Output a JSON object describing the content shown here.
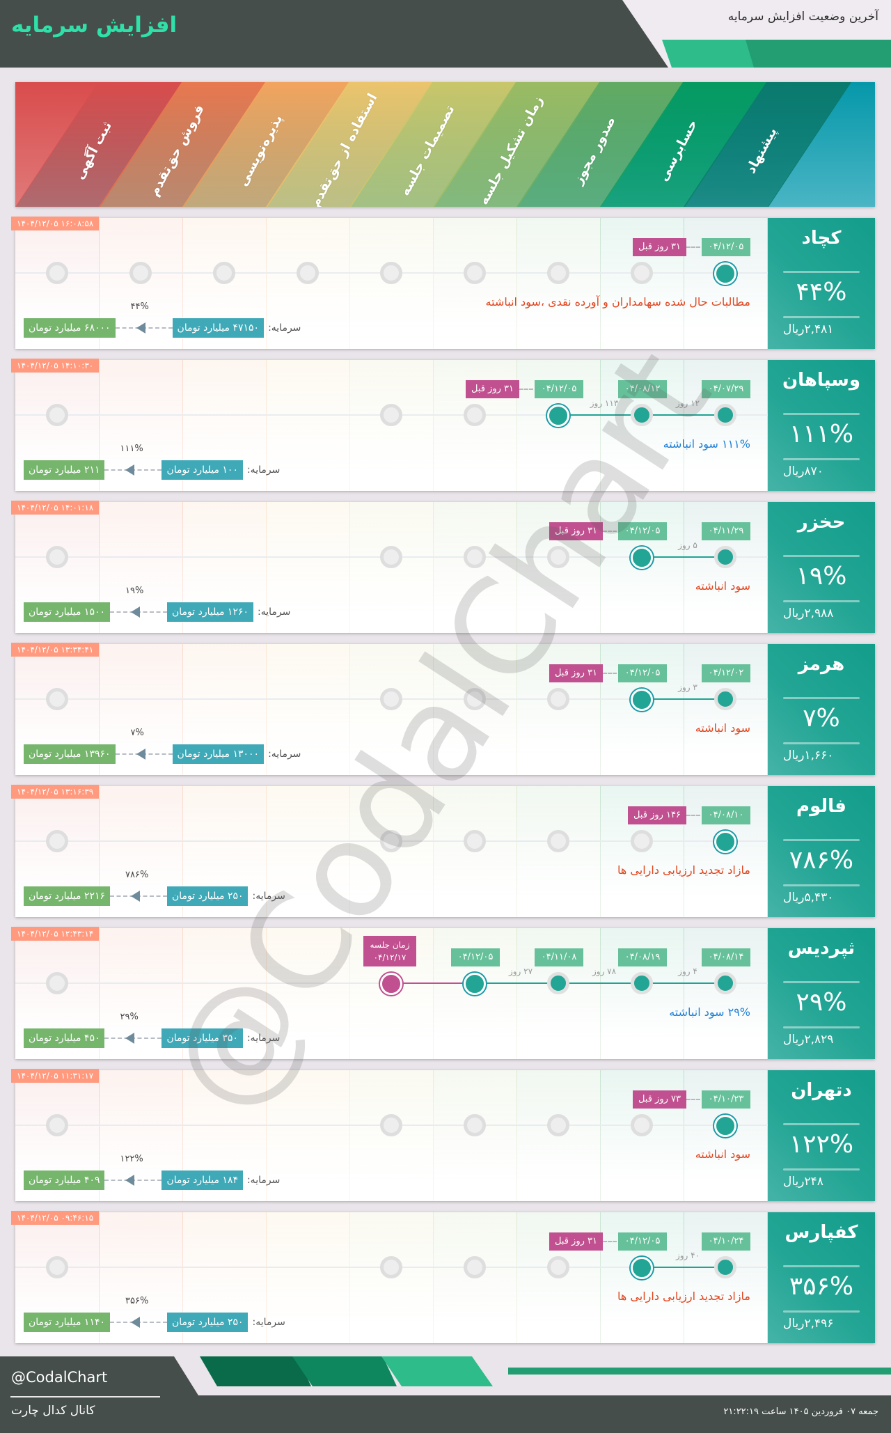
{
  "header": {
    "title": "افزایش سرمایه",
    "subtitle": "آخرین وضعیت افزایش سرمایه"
  },
  "stages": [
    {
      "label": "ثبت آگهی",
      "color": "#d94c4c"
    },
    {
      "label": "فروش حق‌تقدم",
      "color": "#e8784f"
    },
    {
      "label": "پذیره‌نویسی",
      "color": "#f2a45e"
    },
    {
      "label": "استفاده از حق‌تقدم",
      "color": "#ecc46c"
    },
    {
      "label": "تصمیمات جلسه",
      "color": "#c9c66a"
    },
    {
      "label": "زمان تشکیل جلسه",
      "color": "#9bbb62"
    },
    {
      "label": "صدور مجوز",
      "color": "#62aa63"
    },
    {
      "label": "حسابرسی",
      "color": "#069a62"
    },
    {
      "label": "پیشنهاد",
      "color": "#0b7a6e"
    }
  ],
  "capital_label": "سرمایه:",
  "colors": {
    "accent": "#22a594",
    "date_badge": "#66c09a",
    "ago_badge": "#c0508f",
    "timestamp": "#ff9a7f",
    "capital_from": "#3fa9b8",
    "capital_to": "#76b56c",
    "desc_red": "#e0461f",
    "desc_blue": "#1f7fd6"
  },
  "cards": [
    {
      "name": "کچاد",
      "percent": "۴۴%",
      "price": "۲,۴۸۱ریال",
      "timestamp": "۱۴۰۴/۱۲/۰۵ ۱۶:۰۸:۵۸",
      "steps": [
        "۰۴/۱۲/۰۵"
      ],
      "gaps": [],
      "ago": "۳۱ روز قبل",
      "description": "مطالبات حال شده سهامداران و آورده نقدی ،سود انباشته",
      "description_color": "red",
      "pending_stages": [
        1,
        2,
        3,
        4,
        5,
        6,
        7,
        8
      ],
      "capital_from": "۴۷۱۵۰ میلیارد تومان",
      "capital_to": "۶۸۰۰۰ میلیارد تومان",
      "growth": "۴۴%"
    },
    {
      "name": "وسپاهان",
      "percent": "۱۱۱%",
      "price": "۸۷۰ریال",
      "timestamp": "۱۴۰۴/۱۲/۰۵ ۱۴:۱۰:۳۰",
      "steps": [
        "۰۴/۰۷/۲۹",
        "۰۴/۰۸/۱۲",
        "۰۴/۱۲/۰۵"
      ],
      "gaps": [
        "۱۲ روز",
        "۱۱۳ روز"
      ],
      "ago": "۳۱ روز قبل",
      "description": "۱۱۱% سود انباشته",
      "description_color": "blue",
      "pending_stages": [
        3,
        4,
        8
      ],
      "capital_from": "۱۰۰ میلیارد تومان",
      "capital_to": "۲۱۱ میلیارد تومان",
      "growth": "۱۱۱%"
    },
    {
      "name": "حخزر",
      "percent": "۱۹%",
      "price": "۲,۹۸۸ریال",
      "timestamp": "۱۴۰۴/۱۲/۰۵ ۱۴:۰۱:۱۸",
      "steps": [
        "۰۴/۱۱/۲۹",
        "۰۴/۱۲/۰۵"
      ],
      "gaps": [
        "۵ روز"
      ],
      "ago": "۳۱ روز قبل",
      "description": "سود انباشته",
      "description_color": "red",
      "pending_stages": [
        2,
        3,
        4,
        8
      ],
      "capital_from": "۱۲۶۰ میلیارد تومان",
      "capital_to": "۱۵۰۰ میلیارد تومان",
      "growth": "۱۹%"
    },
    {
      "name": "هرمز",
      "percent": "۷%",
      "price": "۱,۶۶۰ریال",
      "timestamp": "۱۴۰۴/۱۲/۰۵ ۱۳:۳۴:۴۱",
      "steps": [
        "۰۴/۱۲/۰۲",
        "۰۴/۱۲/۰۵"
      ],
      "gaps": [
        "۳ روز"
      ],
      "ago": "۳۱ روز قبل",
      "description": "سود انباشته",
      "description_color": "red",
      "pending_stages": [
        2,
        3,
        4,
        8
      ],
      "capital_from": "۱۳۰۰۰ میلیارد تومان",
      "capital_to": "۱۳۹۶۰ میلیارد تومان",
      "growth": "۷%"
    },
    {
      "name": "فالوم",
      "percent": "۷۸۶%",
      "price": "۵,۴۳۰ریال",
      "timestamp": "۱۴۰۴/۱۲/۰۵ ۱۳:۱۶:۳۹",
      "steps": [
        "۰۴/۰۸/۱۰"
      ],
      "gaps": [],
      "ago": "۱۴۶ روز قبل",
      "description": "مازاد تجدید ارزیابی دارایی ها",
      "description_color": "red",
      "pending_stages": [
        1,
        2,
        3,
        4,
        8
      ],
      "capital_from": "۲۵۰ میلیارد تومان",
      "capital_to": "۲۲۱۶ میلیارد تومان",
      "growth": "۷۸۶%"
    },
    {
      "name": "ثپردیس",
      "percent": "۲۹%",
      "price": "۲,۸۲۹ریال",
      "timestamp": "۱۴۰۴/۱۲/۰۵ ۱۲:۴۳:۱۴",
      "steps": [
        "۰۴/۰۸/۱۴",
        "۰۴/۰۸/۱۹",
        "۰۴/۱۱/۰۸",
        "۰۴/۱۲/۰۵"
      ],
      "gaps": [
        "۴ روز",
        "۷۸ روز",
        "۲۷ روز"
      ],
      "meeting": {
        "label": "زمان جلسه",
        "date": "۰۴/۱۲/۱۷"
      },
      "description": "۲۹% سود انباشته",
      "description_color": "blue",
      "pending_stages": [
        8
      ],
      "capital_from": "۳۵۰ میلیارد تومان",
      "capital_to": "۴۵۰ میلیارد تومان",
      "growth": "۲۹%"
    },
    {
      "name": "دتهران",
      "percent": "۱۲۲%",
      "price": "۲۴۸ریال",
      "timestamp": "۱۴۰۴/۱۲/۰۵ ۱۱:۳۱:۱۷",
      "steps": [
        "۰۴/۱۰/۲۳"
      ],
      "gaps": [],
      "ago": "۷۳ روز قبل",
      "description": "سود انباشته",
      "description_color": "red",
      "pending_stages": [
        1,
        2,
        3,
        4,
        8
      ],
      "capital_from": "۱۸۴ میلیارد تومان",
      "capital_to": "۴۰۹ میلیارد تومان",
      "growth": "۱۲۲%"
    },
    {
      "name": "کفپارس",
      "percent": "۳۵۶%",
      "price": "۲,۴۹۶ریال",
      "timestamp": "۱۴۰۴/۱۲/۰۵ ۰۹:۴۶:۱۵",
      "steps": [
        "۰۴/۱۰/۲۴",
        "۰۴/۱۲/۰۵"
      ],
      "gaps": [
        "۴۰ روز"
      ],
      "ago": "۳۱ روز قبل",
      "description": "مازاد تجدید ارزیابی دارایی ها",
      "description_color": "red",
      "pending_stages": [
        2,
        3,
        4,
        8
      ],
      "capital_from": "۲۵۰ میلیارد تومان",
      "capital_to": "۱۱۴۰ میلیارد تومان",
      "growth": "۳۵۶%"
    }
  ],
  "watermark": "@CodalChart",
  "footer": {
    "handle": "@CodalChart",
    "channel": "کانال کدال چارت",
    "datetime": "جمعه ۰۷ فروردین ۱۴۰۵ ساعت ۲۱:۲۲:۱۹"
  }
}
